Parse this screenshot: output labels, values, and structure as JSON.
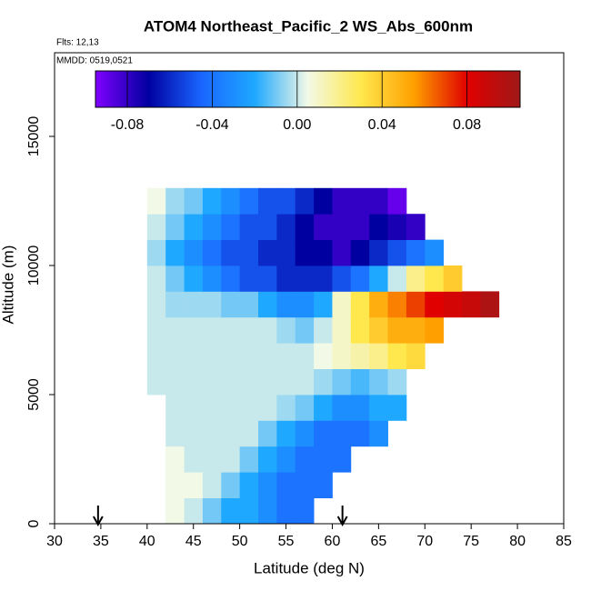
{
  "chart_data": {
    "type": "heatmap",
    "title": "ATOM4 Northeast_Pacific_2 WS_Abs_600nm",
    "subtitle": "Flts: 12,13",
    "annotation": "MMDD: 0519,0521",
    "x_label": "Latitude (deg N)",
    "y_label": "Altitude (m)",
    "xlim": [
      30,
      85
    ],
    "xticks": [
      30,
      35,
      40,
      45,
      50,
      55,
      60,
      65,
      70,
      75,
      80,
      85
    ],
    "ylim": [
      0,
      18240
    ],
    "yticks": [
      0,
      5000,
      10000,
      15000
    ],
    "clim": [
      -0.095,
      0.105
    ],
    "cticks": [
      -0.08,
      -0.04,
      {
        "value": 0,
        "label": "0.00"
      },
      0.04,
      0.08
    ],
    "colormap": [
      "#8000ff",
      "#0000a0",
      "#1a66ff",
      "#1ea8ff",
      "#f2f9e6",
      "#ffe84d",
      "#ffa000",
      "#e00000",
      "#a01818"
    ],
    "arrows": [
      34.7,
      61.1
    ],
    "x": [
      41,
      43,
      45,
      47,
      49,
      51,
      53,
      55,
      57,
      59,
      61,
      63,
      65,
      67,
      69,
      71,
      73,
      75,
      77
    ],
    "y": [
      500,
      1500,
      2500,
      3500,
      4500,
      5500,
      6500,
      7500,
      8500,
      9500,
      10500,
      11500,
      12500
    ],
    "z": [
      [
        null,
        0.005,
        0,
        -0.01,
        -0.02,
        -0.02,
        -0.03,
        -0.04,
        -0.04,
        null,
        null,
        null,
        null,
        null,
        null,
        null,
        null,
        null,
        null
      ],
      [
        null,
        0.005,
        0.005,
        0,
        -0.01,
        -0.02,
        -0.03,
        -0.04,
        -0.04,
        -0.04,
        null,
        null,
        null,
        null,
        null,
        null,
        null,
        null,
        null
      ],
      [
        null,
        0.005,
        0,
        0,
        0,
        -0.01,
        -0.02,
        -0.03,
        -0.04,
        -0.04,
        -0.04,
        null,
        null,
        null,
        null,
        null,
        null,
        null,
        null
      ],
      [
        null,
        0,
        0,
        0,
        0,
        0,
        -0.01,
        -0.02,
        -0.03,
        -0.04,
        -0.04,
        -0.04,
        -0.03,
        null,
        null,
        null,
        null,
        null,
        null
      ],
      [
        null,
        0,
        0,
        0,
        0,
        0,
        0,
        -0.005,
        -0.01,
        -0.02,
        -0.03,
        -0.03,
        -0.02,
        -0.02,
        null,
        null,
        null,
        null,
        null
      ],
      [
        0,
        0,
        0,
        0,
        0,
        0,
        0,
        0,
        0,
        -0.005,
        -0.01,
        -0.015,
        -0.01,
        -0.005,
        null,
        null,
        null,
        null,
        null
      ],
      [
        0,
        0,
        0,
        0,
        0,
        0,
        0,
        0,
        0,
        0.005,
        0.01,
        0.015,
        0.02,
        0.03,
        0.035,
        null,
        null,
        null,
        null
      ],
      [
        0,
        0,
        0,
        0,
        0,
        0,
        0,
        -0.005,
        -0.01,
        0,
        0.01,
        0.03,
        0.04,
        0.05,
        0.05,
        0.055,
        null,
        null,
        null
      ],
      [
        0,
        -0.005,
        -0.005,
        -0.005,
        -0.01,
        -0.01,
        -0.02,
        -0.03,
        -0.03,
        -0.02,
        0.01,
        0.03,
        0.05,
        0.06,
        0.07,
        0.08,
        0.085,
        0.09,
        0.1
      ],
      [
        0,
        -0.01,
        -0.02,
        -0.03,
        -0.04,
        -0.05,
        -0.05,
        -0.06,
        -0.06,
        -0.06,
        -0.05,
        -0.04,
        -0.02,
        0,
        0.02,
        0.03,
        0.04,
        null,
        null
      ],
      [
        -0.005,
        -0.02,
        -0.03,
        -0.04,
        -0.05,
        -0.05,
        -0.06,
        -0.06,
        -0.07,
        -0.07,
        -0.08,
        -0.07,
        -0.06,
        -0.05,
        -0.04,
        -0.03,
        null,
        null,
        null
      ],
      [
        0,
        -0.01,
        -0.02,
        -0.03,
        -0.04,
        -0.05,
        -0.05,
        -0.06,
        -0.07,
        -0.08,
        -0.08,
        -0.08,
        -0.07,
        -0.075,
        -0.08,
        null,
        null,
        null,
        null
      ],
      [
        0.005,
        -0.005,
        -0.01,
        -0.02,
        -0.03,
        -0.04,
        -0.05,
        -0.05,
        -0.06,
        -0.07,
        -0.08,
        -0.08,
        -0.08,
        -0.09,
        null,
        null,
        null,
        null,
        null
      ]
    ]
  }
}
